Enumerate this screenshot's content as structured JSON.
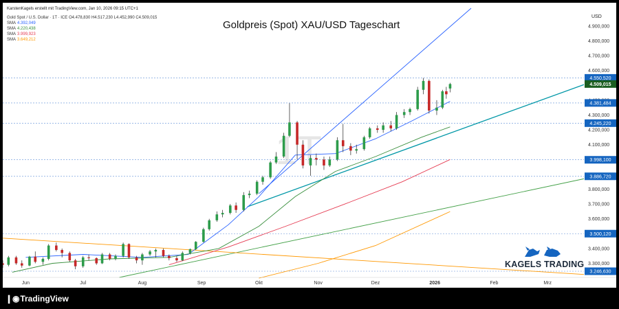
{
  "credit": "KarstenKagels erstellt mit TradingView.com, Jan 10, 2026 09:15 UTC+1",
  "title": "Goldpreis (Spot) XAU/USD Tageschart",
  "symbol_line": {
    "name": "Gold Spot / U.S. Dollar · 1T · ICE",
    "ohlc": "O4.478,830 H4.517,230 L4.452,990 C4.509,015"
  },
  "legend": [
    {
      "label": "SMA",
      "value": "4.392,049",
      "color": "#2962ff"
    },
    {
      "label": "SMA",
      "value": "4.220,438",
      "color": "#388e3c"
    },
    {
      "label": "SMA",
      "value": "3.999,923",
      "color": "#e53950"
    },
    {
      "label": "SMA",
      "value": "3.649,212",
      "color": "#ff9800"
    }
  ],
  "currency": "USD",
  "branding": {
    "tradingview": "TradingView",
    "kagels": "KAGELS TRADING"
  },
  "colors": {
    "up": "#26a69a",
    "down": "#ef5350",
    "candle_up_body": "#2d9c4b",
    "candle_down_body": "#c62828",
    "wick": "#222222",
    "trend_teal": "#0097a7",
    "trend_blue": "#2962ff",
    "trend_green": "#43a047",
    "trend_orange": "#ff9800",
    "hline": "#5c8dd6",
    "label_dark_green": "#1b5e20",
    "label_blue": "#1565c0"
  },
  "chart_data": {
    "type": "candlestick",
    "title": "Goldpreis (Spot) XAU/USD Tageschart",
    "ylim": [
      3205,
      5020
    ],
    "y_ticks": [
      "4.900,000",
      "4.800,000",
      "4.700,000",
      "4.600,000",
      "4.400,000",
      "4.300,000",
      "4.200,000",
      "4.100,000",
      "3.800,000",
      "3.700,000",
      "3.600,000",
      "3.400,000",
      "3.300,000"
    ],
    "y_tick_values": [
      4900,
      4800,
      4700,
      4600,
      4400,
      4300,
      4200,
      4100,
      3800,
      3700,
      3600,
      3400,
      3300
    ],
    "x_ticks": [
      "Jun",
      "Jul",
      "Aug",
      "Sep",
      "Okt",
      "Nov",
      "Dez",
      "2026",
      "Feb",
      "Mrz"
    ],
    "x_tick_dates": [
      "2025-06-01",
      "2025-07-01",
      "2025-08-01",
      "2025-09-01",
      "2025-10-01",
      "2025-11-01",
      "2025-12-01",
      "2026-01-01",
      "2026-02-01",
      "2026-03-01"
    ],
    "x_range": [
      "2025-05-20",
      "2026-03-20"
    ],
    "price_labels": [
      {
        "value": "4.550,520",
        "price": 4550.52,
        "style": "blue"
      },
      {
        "value": "4.509,015",
        "price": 4509.015,
        "style": "current"
      },
      {
        "value": "4.381,484",
        "price": 4381.484,
        "style": "blue"
      },
      {
        "value": "4.245,220",
        "price": 4245.22,
        "style": "blue"
      },
      {
        "value": "3.998,100",
        "price": 3998.1,
        "style": "blue"
      },
      {
        "value": "3.886,720",
        "price": 3886.72,
        "style": "blue"
      },
      {
        "value": "3.500,120",
        "price": 3500.12,
        "style": "blue"
      },
      {
        "value": "3.246,630",
        "price": 3246.63,
        "style": "blue"
      }
    ],
    "trendlines": [
      {
        "name": "blue",
        "p1": [
          "2025-10-01",
          3770
        ],
        "p2": [
          "2026-01-20",
          5020
        ]
      },
      {
        "name": "teal",
        "p1": [
          "2025-10-01",
          3710
        ],
        "p2": [
          "2026-03-20",
          4505
        ]
      },
      {
        "name": "green",
        "p1": [
          "2025-07-20",
          3205
        ],
        "p2": [
          "2026-03-20",
          3870
        ]
      },
      {
        "name": "orange",
        "p1": [
          "2025-05-20",
          3470
        ],
        "p2": [
          "2026-03-20",
          3225
        ]
      }
    ],
    "sma_series": [
      {
        "name": "SMA 1",
        "color": "#2962ff",
        "points": [
          [
            "2025-06-01",
            3340
          ],
          [
            "2025-07-01",
            3360
          ],
          [
            "2025-08-01",
            3340
          ],
          [
            "2025-08-25",
            3360
          ],
          [
            "2025-09-15",
            3560
          ],
          [
            "2025-10-01",
            3750
          ],
          [
            "2025-10-20",
            4030
          ],
          [
            "2025-11-10",
            4040
          ],
          [
            "2025-12-01",
            4140
          ],
          [
            "2025-12-20",
            4260
          ],
          [
            "2026-01-09",
            4392
          ]
        ]
      },
      {
        "name": "SMA 2",
        "color": "#388e3c",
        "points": [
          [
            "2025-05-25",
            3240
          ],
          [
            "2025-06-15",
            3300
          ],
          [
            "2025-07-15",
            3330
          ],
          [
            "2025-08-15",
            3340
          ],
          [
            "2025-09-10",
            3400
          ],
          [
            "2025-10-01",
            3550
          ],
          [
            "2025-10-20",
            3750
          ],
          [
            "2025-11-10",
            3920
          ],
          [
            "2025-12-01",
            4020
          ],
          [
            "2025-12-25",
            4150
          ],
          [
            "2026-01-09",
            4220
          ]
        ]
      },
      {
        "name": "SMA 3",
        "color": "#e53950",
        "points": [
          [
            "2025-08-15",
            3290
          ],
          [
            "2025-09-15",
            3410
          ],
          [
            "2025-10-15",
            3550
          ],
          [
            "2025-11-15",
            3700
          ],
          [
            "2025-12-15",
            3850
          ],
          [
            "2026-01-09",
            4000
          ]
        ]
      },
      {
        "name": "SMA 4",
        "color": "#ff9800",
        "points": [
          [
            "2025-10-01",
            3200
          ],
          [
            "2025-11-01",
            3300
          ],
          [
            "2025-12-01",
            3420
          ],
          [
            "2026-01-09",
            3649
          ]
        ]
      }
    ],
    "candles": [
      [
        "2025-05-20",
        3300,
        3320,
        3270,
        3290
      ],
      [
        "2025-05-23",
        3290,
        3350,
        3280,
        3340
      ],
      [
        "2025-05-27",
        3340,
        3350,
        3290,
        3300
      ],
      [
        "2025-05-30",
        3300,
        3320,
        3270,
        3285
      ],
      [
        "2025-06-03",
        3285,
        3350,
        3280,
        3345
      ],
      [
        "2025-06-06",
        3345,
        3380,
        3300,
        3310
      ],
      [
        "2025-06-10",
        3310,
        3340,
        3290,
        3330
      ],
      [
        "2025-06-13",
        3330,
        3430,
        3320,
        3420
      ],
      [
        "2025-06-17",
        3420,
        3440,
        3380,
        3390
      ],
      [
        "2025-06-20",
        3390,
        3400,
        3340,
        3370
      ],
      [
        "2025-06-24",
        3370,
        3380,
        3310,
        3320
      ],
      [
        "2025-06-27",
        3320,
        3330,
        3260,
        3280
      ],
      [
        "2025-07-01",
        3280,
        3350,
        3270,
        3340
      ],
      [
        "2025-07-04",
        3340,
        3360,
        3320,
        3335
      ],
      [
        "2025-07-08",
        3335,
        3340,
        3290,
        3300
      ],
      [
        "2025-07-11",
        3300,
        3370,
        3295,
        3360
      ],
      [
        "2025-07-15",
        3360,
        3370,
        3320,
        3330
      ],
      [
        "2025-07-18",
        3330,
        3360,
        3320,
        3350
      ],
      [
        "2025-07-22",
        3350,
        3440,
        3340,
        3430
      ],
      [
        "2025-07-25",
        3430,
        3435,
        3330,
        3340
      ],
      [
        "2025-07-29",
        3340,
        3350,
        3300,
        3320
      ],
      [
        "2025-08-01",
        3320,
        3370,
        3290,
        3360
      ],
      [
        "2025-08-05",
        3360,
        3390,
        3350,
        3380
      ],
      [
        "2025-08-08",
        3380,
        3400,
        3340,
        3390
      ],
      [
        "2025-08-12",
        3390,
        3400,
        3340,
        3350
      ],
      [
        "2025-08-15",
        3350,
        3360,
        3320,
        3335
      ],
      [
        "2025-08-19",
        3335,
        3350,
        3310,
        3320
      ],
      [
        "2025-08-22",
        3320,
        3380,
        3315,
        3370
      ],
      [
        "2025-08-26",
        3370,
        3400,
        3360,
        3395
      ],
      [
        "2025-08-29",
        3395,
        3450,
        3390,
        3445
      ],
      [
        "2025-09-02",
        3445,
        3540,
        3440,
        3530
      ],
      [
        "2025-09-05",
        3530,
        3600,
        3520,
        3590
      ],
      [
        "2025-09-09",
        3590,
        3650,
        3580,
        3630
      ],
      [
        "2025-09-12",
        3630,
        3660,
        3610,
        3640
      ],
      [
        "2025-09-16",
        3640,
        3700,
        3630,
        3690
      ],
      [
        "2025-09-19",
        3690,
        3710,
        3640,
        3660
      ],
      [
        "2025-09-23",
        3660,
        3780,
        3650,
        3760
      ],
      [
        "2025-09-26",
        3760,
        3790,
        3740,
        3770
      ],
      [
        "2025-09-30",
        3770,
        3860,
        3760,
        3850
      ],
      [
        "2025-10-03",
        3850,
        3890,
        3830,
        3880
      ],
      [
        "2025-10-07",
        3880,
        3990,
        3870,
        3980
      ],
      [
        "2025-10-10",
        3980,
        4050,
        3970,
        4020
      ],
      [
        "2025-10-14",
        4020,
        4180,
        4010,
        4160
      ],
      [
        "2025-10-17",
        4160,
        4380,
        4150,
        4250
      ],
      [
        "2025-10-21",
        4250,
        4260,
        4000,
        4100
      ],
      [
        "2025-10-24",
        4100,
        4130,
        3940,
        3960
      ],
      [
        "2025-10-28",
        3960,
        4030,
        3890,
        4010
      ],
      [
        "2025-10-31",
        4010,
        4040,
        3960,
        4000
      ],
      [
        "2025-11-04",
        4000,
        4020,
        3930,
        3960
      ],
      [
        "2025-11-07",
        3960,
        4020,
        3950,
        4000
      ],
      [
        "2025-11-11",
        4000,
        4150,
        3990,
        4130
      ],
      [
        "2025-11-14",
        4130,
        4240,
        4050,
        4090
      ],
      [
        "2025-11-18",
        4090,
        4110,
        4030,
        4060
      ],
      [
        "2025-11-21",
        4060,
        4100,
        4040,
        4070
      ],
      [
        "2025-11-25",
        4070,
        4160,
        4060,
        4150
      ],
      [
        "2025-11-28",
        4150,
        4220,
        4140,
        4210
      ],
      [
        "2025-12-02",
        4210,
        4230,
        4180,
        4200
      ],
      [
        "2025-12-05",
        4200,
        4250,
        4180,
        4230
      ],
      [
        "2025-12-09",
        4230,
        4260,
        4190,
        4210
      ],
      [
        "2025-12-12",
        4210,
        4320,
        4200,
        4300
      ],
      [
        "2025-12-16",
        4300,
        4340,
        4280,
        4320
      ],
      [
        "2025-12-19",
        4320,
        4350,
        4300,
        4340
      ],
      [
        "2025-12-23",
        4340,
        4490,
        4330,
        4470
      ],
      [
        "2025-12-26",
        4470,
        4550,
        4440,
        4530
      ],
      [
        "2025-12-29",
        4530,
        4540,
        4310,
        4330
      ],
      [
        "2026-01-02",
        4330,
        4400,
        4300,
        4350
      ],
      [
        "2026-01-05",
        4350,
        4470,
        4340,
        4460
      ],
      [
        "2026-01-07",
        4460,
        4490,
        4410,
        4440
      ],
      [
        "2026-01-09",
        4478.83,
        4517.23,
        4452.99,
        4509.015
      ]
    ]
  }
}
